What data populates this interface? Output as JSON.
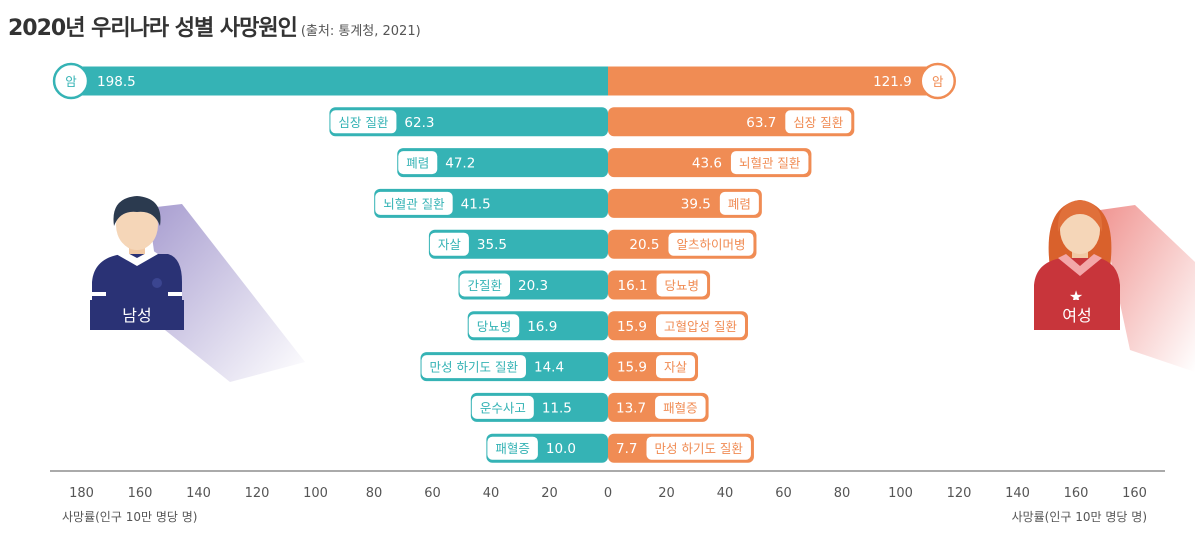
{
  "title": "2020년 우리나라 성별 사망원인",
  "subtitle": "(출처: 통계청, 2021)",
  "axis_caption_left": "사망률(인구 10만 명당 명)",
  "axis_caption_right": "사망률(인구 10만 명당 명)",
  "male_label": "남성",
  "female_label": "여성",
  "colors": {
    "male": "#35b3b5",
    "female": "#f08c54",
    "male_badge": "#2a3275",
    "female_badge": "#c8353b",
    "text": "#333333",
    "axis": "#555555"
  },
  "chart_data": {
    "type": "bar",
    "orientation": "horizontal-diverging",
    "xticks_left": [
      "180",
      "160",
      "140",
      "120",
      "100",
      "80",
      "60",
      "40",
      "20",
      "0"
    ],
    "xticks_right": [
      "20",
      "40",
      "60",
      "80",
      "100",
      "120",
      "140",
      "160",
      "160"
    ],
    "male": [
      {
        "cause": "암",
        "value": 198.5
      },
      {
        "cause": "심장 질환",
        "value": 62.3
      },
      {
        "cause": "폐렴",
        "value": 47.2
      },
      {
        "cause": "뇌혈관 질환",
        "value": 41.5
      },
      {
        "cause": "자살",
        "value": 35.5
      },
      {
        "cause": "간질환",
        "value": 20.3
      },
      {
        "cause": "당뇨병",
        "value": 16.9
      },
      {
        "cause": "만성 하기도 질환",
        "value": 14.4
      },
      {
        "cause": "운수사고",
        "value": 11.5
      },
      {
        "cause": "패혈증",
        "value": 10.0
      }
    ],
    "female": [
      {
        "cause": "암",
        "value": 121.9
      },
      {
        "cause": "심장 질환",
        "value": 63.7
      },
      {
        "cause": "뇌혈관 질환",
        "value": 43.6
      },
      {
        "cause": "폐렴",
        "value": 39.5
      },
      {
        "cause": "알츠하이머병",
        "value": 20.5
      },
      {
        "cause": "당뇨병",
        "value": 16.1
      },
      {
        "cause": "고혈압성 질환",
        "value": 15.9
      },
      {
        "cause": "자살",
        "value": 15.9
      },
      {
        "cause": "패혈증",
        "value": 13.7
      },
      {
        "cause": "만성 하기도 질환",
        "value": 7.7
      }
    ],
    "value_labels_male": [
      "198.5",
      "62.3",
      "47.2",
      "41.5",
      "35.5",
      "20.3",
      "16.9",
      "14.4",
      "11.5",
      "10.0"
    ],
    "value_labels_female": [
      "121.9",
      "63.7",
      "43.6",
      "39.5",
      "20.5",
      "16.1",
      "15.9",
      "15.9",
      "13.7",
      "7.7"
    ]
  }
}
